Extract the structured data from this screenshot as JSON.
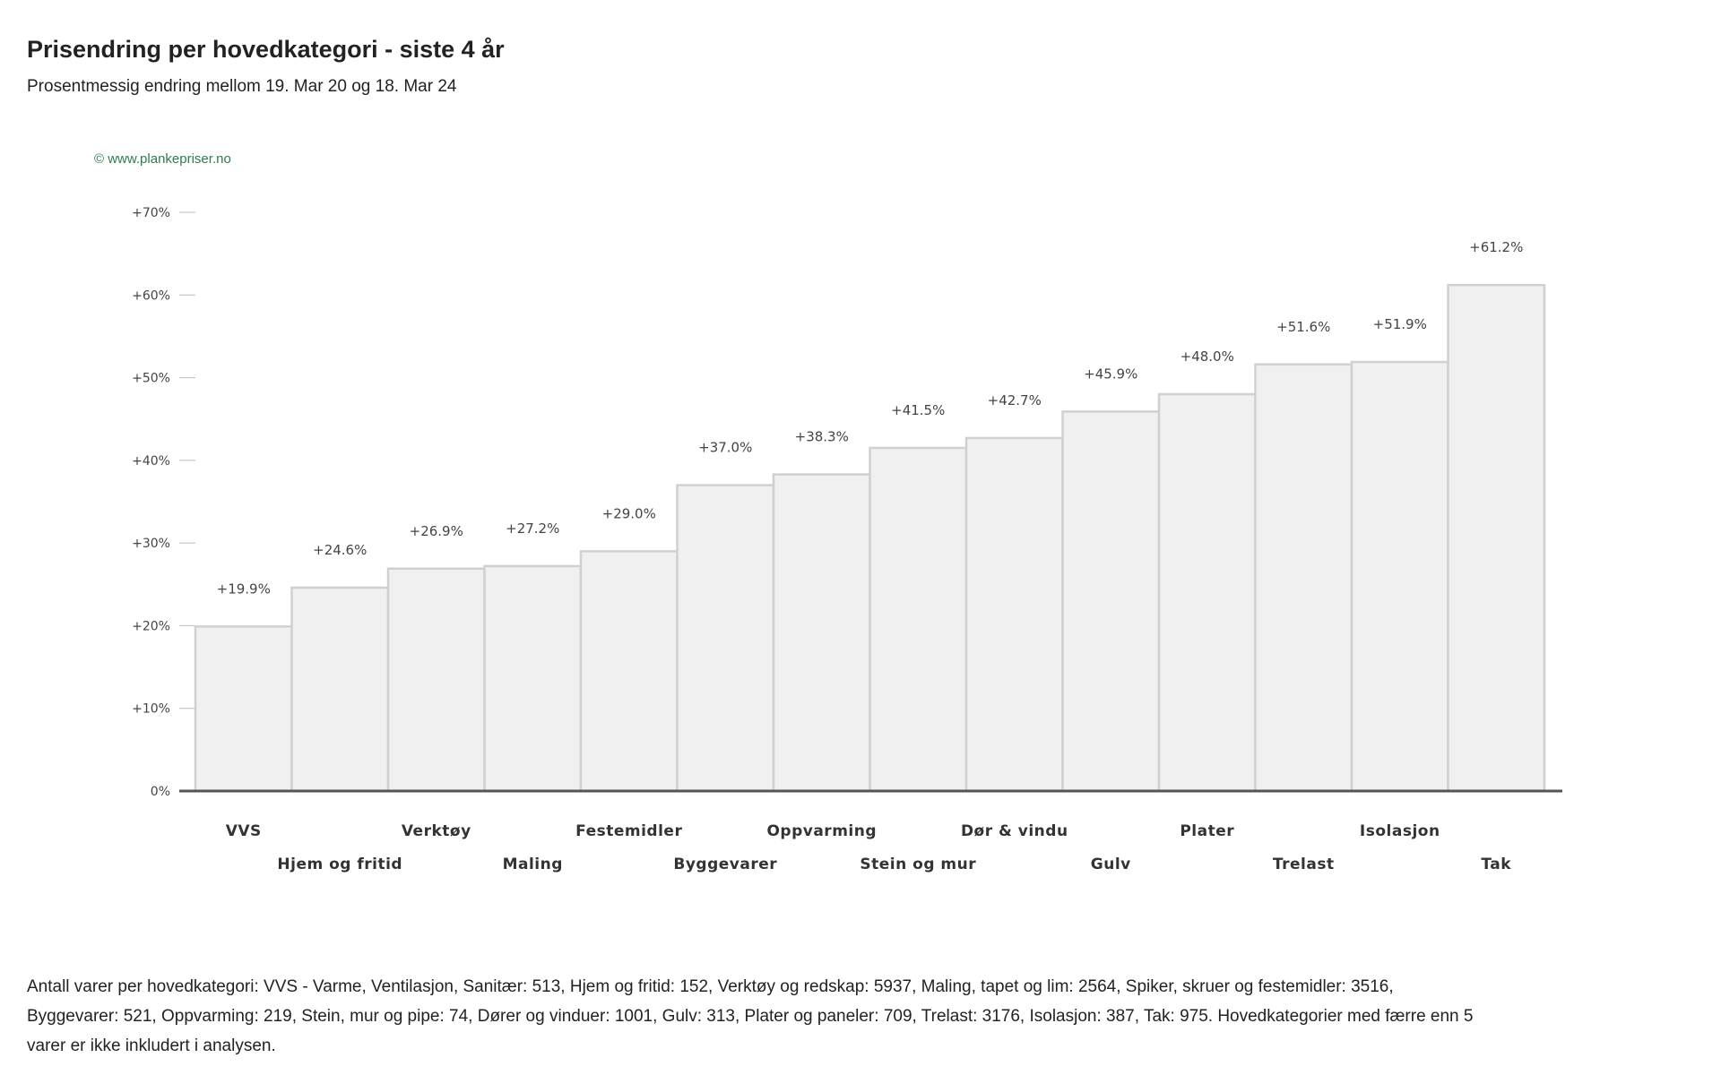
{
  "header": {
    "title": "Prisendring per hovedkategori - siste 4 år",
    "subtitle": "Prosentmessig endring mellom 19. Mar 20 og 18. Mar 24"
  },
  "watermark": "© www.plankepriser.no",
  "footnote": "Antall varer per hovedkategori: VVS - Varme, Ventilasjon, Sanitær: 513, Hjem og fritid: 152, Verktøy og redskap: 5937, Maling, tapet og lim: 2564, Spiker, skruer og festemidler: 3516, Byggevarer: 521, Oppvarming: 219, Stein, mur og pipe: 74, Dører og vinduer: 1001, Gulv: 313, Plater og paneler: 709, Trelast: 3176, Isolasjon: 387, Tak: 975. Hovedkategorier med færre enn 5 varer er ikke inkludert i analysen.",
  "colors": {
    "bar_fill": "#f0f0f0",
    "bar_stroke": "#d0d0d0",
    "axis": "#555555",
    "tick": "#bbbbbb"
  },
  "chart_data": {
    "type": "bar",
    "title": "Prisendring per hovedkategori - siste 4 år",
    "subtitle": "Prosentmessig endring mellom 19. Mar 20 og 18. Mar 24",
    "xlabel": "",
    "ylabel": "",
    "ylim": [
      0,
      70
    ],
    "yticks": [
      0,
      10,
      20,
      30,
      40,
      50,
      60,
      70
    ],
    "ytick_labels": [
      "0%",
      "+10%",
      "+20%",
      "+30%",
      "+40%",
      "+50%",
      "+60%",
      "+70%"
    ],
    "grid": false,
    "categories": [
      "VVS",
      "Hjem og fritid",
      "Verktøy",
      "Maling",
      "Festemidler",
      "Byggevarer",
      "Oppvarming",
      "Stein og mur",
      "Dør & vindu",
      "Gulv",
      "Plater",
      "Trelast",
      "Isolasjon",
      "Tak"
    ],
    "values": [
      19.9,
      24.6,
      26.9,
      27.2,
      29.0,
      37.0,
      38.3,
      41.5,
      42.7,
      45.9,
      48.0,
      51.6,
      51.9,
      61.2
    ],
    "value_labels": [
      "+19.9%",
      "+24.6%",
      "+26.9%",
      "+27.2%",
      "+29.0%",
      "+37.0%",
      "+38.3%",
      "+41.5%",
      "+42.7%",
      "+45.9%",
      "+48.0%",
      "+51.6%",
      "+51.9%",
      "+61.2%"
    ]
  }
}
